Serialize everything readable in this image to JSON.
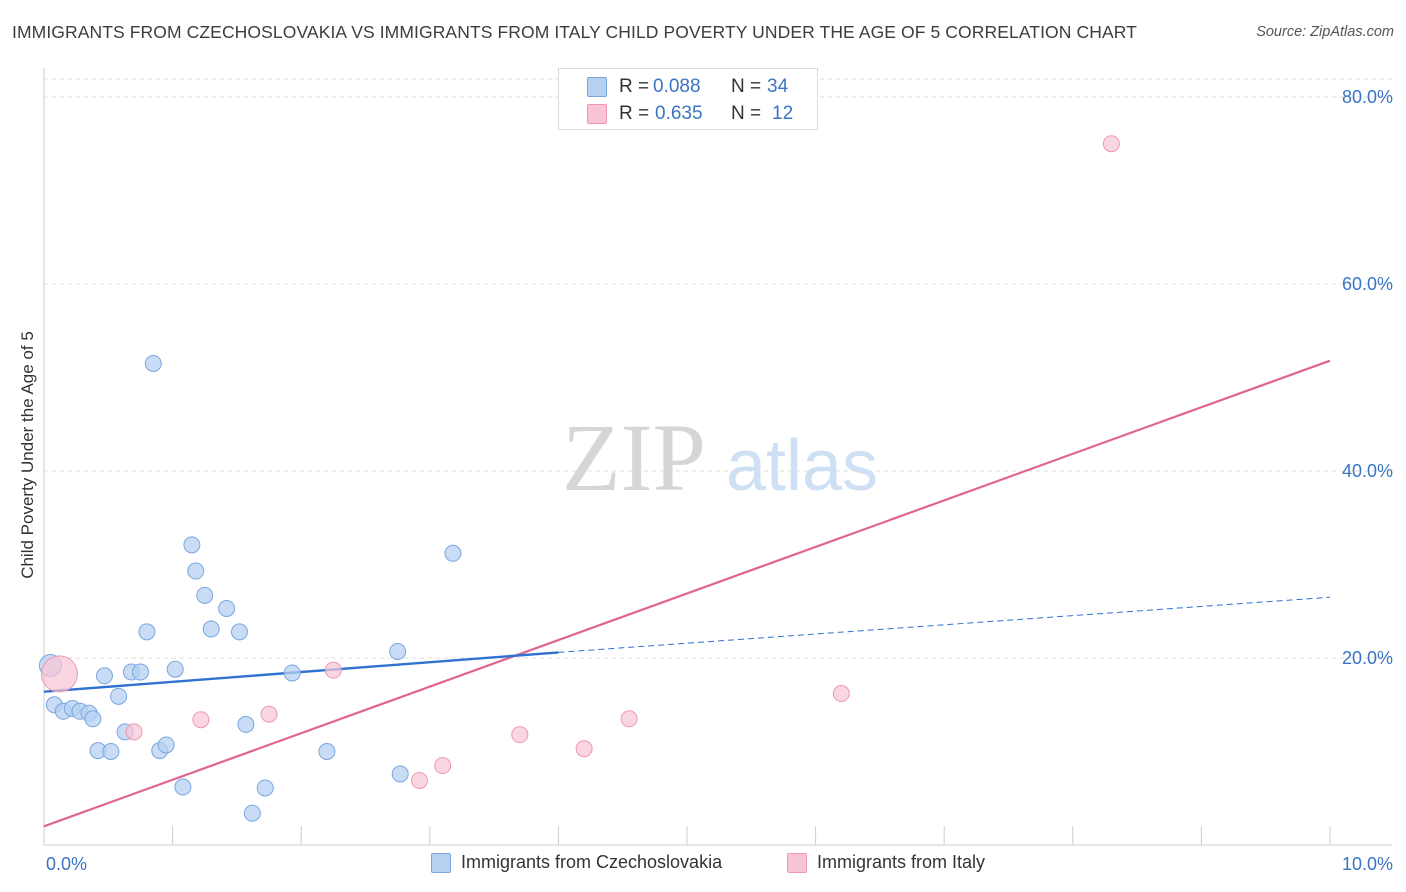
{
  "title": "IMMIGRANTS FROM CZECHOSLOVAKIA VS IMMIGRANTS FROM ITALY CHILD POVERTY UNDER THE AGE OF 5 CORRELATION CHART",
  "source": "Source: ZipAtlas.com",
  "watermark": {
    "zip": "ZIP",
    "atlas": "atlas"
  },
  "colors": {
    "series_czech_fill": "#b6d0f2",
    "series_czech_stroke": "#7aa6de",
    "series_czech_line": "#2f72d0",
    "series_italy_fill": "#f8c4d3",
    "series_italy_stroke": "#ee98b4",
    "series_italy_line": "#e0648f",
    "tick_label": "#3a74c5",
    "grid": "#dddddd"
  },
  "correlation_legend": [
    {
      "r_label": "R =",
      "r_value": "0.088",
      "n_label": "N =",
      "n_value": "34"
    },
    {
      "r_label": "R =",
      "r_value": "0.635",
      "n_label": "N =",
      "n_value": "12"
    }
  ],
  "chart_data": {
    "type": "scatter",
    "title": "IMMIGRANTS FROM CZECHOSLOVAKIA VS IMMIGRANTS FROM ITALY CHILD POVERTY UNDER THE AGE OF 5 CORRELATION CHART",
    "xlabel": "",
    "ylabel": "Child Poverty Under the Age of 5",
    "xlim": [
      0,
      10
    ],
    "ylim": [
      0,
      80
    ],
    "x_tick_labels": [
      "0.0%",
      "10.0%"
    ],
    "y_ticks": [
      20,
      40,
      60,
      80
    ],
    "y_tick_labels": [
      "20.0%",
      "40.0%",
      "60.0%",
      "80.0%"
    ],
    "grid": true,
    "legend_position": "bottom",
    "series": [
      {
        "name": "Immigrants from Czechoslovakia",
        "points": [
          [
            0.05,
            19.2
          ],
          [
            0.08,
            15.0
          ],
          [
            0.15,
            14.3
          ],
          [
            0.22,
            14.6
          ],
          [
            0.28,
            14.3
          ],
          [
            0.35,
            14.1
          ],
          [
            0.38,
            13.5
          ],
          [
            0.42,
            10.1
          ],
          [
            0.47,
            18.1
          ],
          [
            0.52,
            10.0
          ],
          [
            0.58,
            15.9
          ],
          [
            0.63,
            12.1
          ],
          [
            0.68,
            18.5
          ],
          [
            0.75,
            18.5
          ],
          [
            0.8,
            22.8
          ],
          [
            0.85,
            51.5
          ],
          [
            0.9,
            10.1
          ],
          [
            0.95,
            10.7
          ],
          [
            1.02,
            18.8
          ],
          [
            1.08,
            6.2
          ],
          [
            1.15,
            32.1
          ],
          [
            1.18,
            29.3
          ],
          [
            1.25,
            26.7
          ],
          [
            1.3,
            23.1
          ],
          [
            1.42,
            25.3
          ],
          [
            1.52,
            22.8
          ],
          [
            1.57,
            12.9
          ],
          [
            1.72,
            6.1
          ],
          [
            1.62,
            3.4
          ],
          [
            1.93,
            18.4
          ],
          [
            2.2,
            10.0
          ],
          [
            2.75,
            20.7
          ],
          [
            2.77,
            7.6
          ],
          [
            3.18,
            31.2
          ]
        ],
        "trend": {
          "x": [
            0,
            4
          ],
          "y": [
            16.4,
            20.6
          ],
          "dashed_extension": {
            "x": [
              4,
              10
            ],
            "y": [
              20.6,
              26.5
            ]
          }
        }
      },
      {
        "name": "Immigrants from Italy",
        "points": [
          [
            0.12,
            18.3
          ],
          [
            0.7,
            12.1
          ],
          [
            1.22,
            13.4
          ],
          [
            1.75,
            14.0
          ],
          [
            2.25,
            18.7
          ],
          [
            2.92,
            6.9
          ],
          [
            3.1,
            8.5
          ],
          [
            3.7,
            11.8
          ],
          [
            4.2,
            10.3
          ],
          [
            4.55,
            13.5
          ],
          [
            6.2,
            16.2
          ],
          [
            8.3,
            75.0
          ]
        ],
        "trend": {
          "x": [
            0,
            10
          ],
          "y": [
            2.0,
            51.8
          ]
        }
      }
    ]
  }
}
